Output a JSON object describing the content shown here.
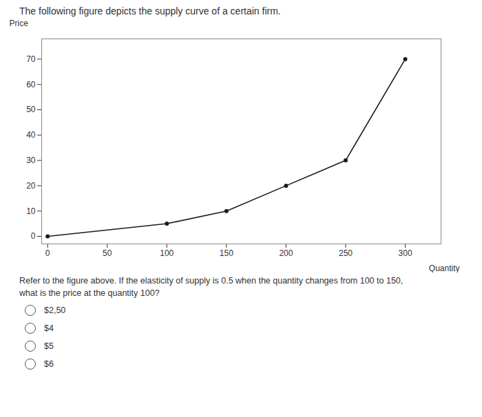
{
  "chart_data": {
    "type": "line",
    "title": "The following figure depicts the supply curve of a certain firm.",
    "x_label": "Quantity",
    "y_label": "Price",
    "x": [
      0,
      100,
      150,
      200,
      250,
      300
    ],
    "values": [
      0,
      5,
      10,
      20,
      30,
      70
    ],
    "color": "#1a1a1a",
    "marker": "circle",
    "xlim": [
      -5,
      330
    ],
    "ylim": [
      -3,
      78
    ],
    "xticks": [
      0,
      50,
      100,
      150,
      200,
      250,
      300
    ],
    "yticks": [
      0,
      10,
      20,
      30,
      40,
      50,
      60,
      70
    ],
    "grid": false,
    "annotations": [
      "Refer to the figure above. If the elasticity of supply is 0.5 when the quantity changes from 100 to 150,",
      "what is the price at the quantity 100?"
    ],
    "choices": [
      "$2,50",
      "$4",
      "$5",
      "$6"
    ]
  }
}
